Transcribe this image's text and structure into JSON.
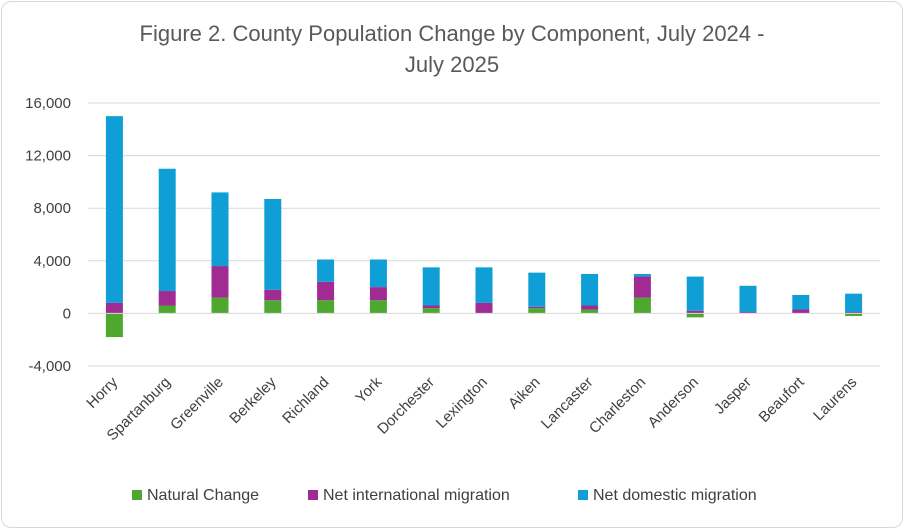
{
  "chart_data": {
    "type": "bar",
    "stacked": true,
    "title_line1": "Figure 2. County Population Change by Component, July 2024 -",
    "title_line2": "July 2025",
    "xlabel": "",
    "ylabel": "",
    "ylim": [
      -4000,
      16000
    ],
    "yticks": [
      -4000,
      0,
      4000,
      8000,
      12000,
      16000
    ],
    "ytick_labels": [
      "-4,000",
      "0",
      "4,000",
      "8,000",
      "12,000",
      "16,000"
    ],
    "grid": true,
    "legend_position": "bottom",
    "categories": [
      "Horry",
      "Spartanburg",
      "Greenville",
      "Berkeley",
      "Richland",
      "York",
      "Dorchester",
      "Lexington",
      "Aiken",
      "Lancaster",
      "Charleston",
      "Anderson",
      "Jasper",
      "Beaufort",
      "Laurens"
    ],
    "series": [
      {
        "name": "Natural Change",
        "color": "#4ea72e",
        "values": [
          -1800,
          600,
          1200,
          1000,
          1000,
          1000,
          400,
          0,
          400,
          300,
          1200,
          -300,
          0,
          0,
          -200
        ]
      },
      {
        "name": "Net international migration",
        "color": "#a02b93",
        "values": [
          800,
          1100,
          2400,
          800,
          1400,
          1000,
          200,
          800,
          100,
          300,
          1600,
          200,
          100,
          300,
          100
        ]
      },
      {
        "name": "Net domestic migration",
        "color": "#0f9ed5",
        "values": [
          14200,
          9300,
          5600,
          6900,
          1700,
          2100,
          2900,
          2700,
          2600,
          2400,
          200,
          2600,
          2000,
          1100,
          1400
        ]
      }
    ]
  }
}
